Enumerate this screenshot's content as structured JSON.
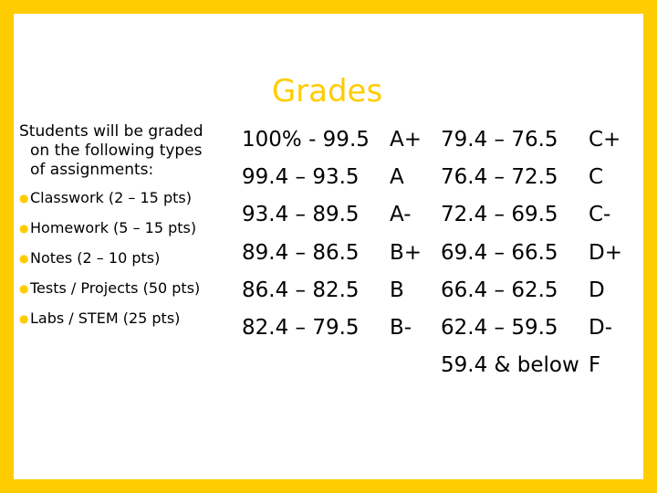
{
  "title": "Grades",
  "intro": {
    "line1": "Students will be graded",
    "line2": "on the following types",
    "line3": "of assignments:"
  },
  "assignment_types": [
    "Classwork (2 – 15 pts)",
    "Homework (5 – 15 pts)",
    "Notes (2 – 10 pts)",
    "Tests / Projects (50 pts)",
    "Labs / STEM (25 pts)"
  ],
  "grade_scale_left": {
    "ranges": [
      "100% - 99.5",
      "99.4 – 93.5",
      "93.4 – 89.5",
      "89.4 – 86.5",
      "86.4 – 82.5",
      "82.4 – 79.5"
    ],
    "letters": [
      "A+",
      "A",
      "A-",
      "B+",
      "B",
      "B-"
    ]
  },
  "grade_scale_right": {
    "ranges": [
      "79.4 – 76.5",
      "76.4 – 72.5",
      "72.4 – 69.5",
      "69.4 – 66.5",
      "66.4 – 62.5",
      "62.4 – 59.5",
      "59.4 & below"
    ],
    "letters": [
      "C+",
      "C",
      "C-",
      "D+",
      "D",
      "D-",
      "F"
    ]
  },
  "colors": {
    "border": "#FFCC00",
    "title": "#FFCC00",
    "bullet": "#FFCC00",
    "background": "#FFFFFF",
    "text": "#000000"
  }
}
